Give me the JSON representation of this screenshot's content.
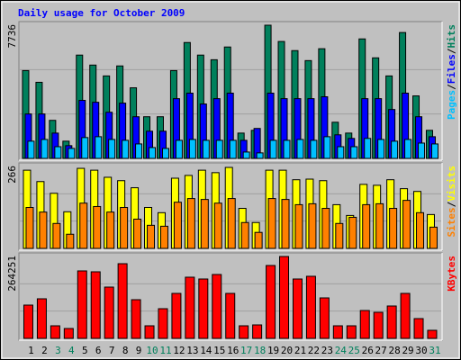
{
  "chart_data": [
    {
      "type": "bar",
      "title": "Daily usage for October 2009",
      "ylim": [
        0,
        7736
      ],
      "legend_separator": "/",
      "series": [
        {
          "name": "Hits",
          "color": "#00805c",
          "values": [
            5100,
            4420,
            2210,
            1000,
            6000,
            5420,
            4790,
            5370,
            4100,
            2420,
            2420,
            5100,
            6730,
            6000,
            5730,
            6470,
            1470,
            1630,
            7736,
            6790,
            6260,
            5680,
            6370,
            2100,
            1470,
            6940,
            5840,
            4790,
            7310,
            3630,
            1630
          ]
        },
        {
          "name": "Files",
          "color": "#0000ff",
          "values": [
            2580,
            2580,
            1470,
            740,
            3370,
            3260,
            2680,
            3210,
            2420,
            1580,
            1580,
            3470,
            3790,
            3160,
            3470,
            3790,
            1050,
            1740,
            3790,
            3470,
            3470,
            3470,
            3580,
            1370,
            1160,
            3470,
            3470,
            2840,
            3790,
            2420,
            1260
          ]
        },
        {
          "name": "Pages",
          "color": "#00c0ff",
          "values": [
            1000,
            1100,
            680,
            580,
            1210,
            1260,
            1100,
            1050,
            840,
            630,
            580,
            1050,
            1100,
            1050,
            1050,
            1050,
            370,
            320,
            1050,
            1050,
            1100,
            1050,
            1260,
            680,
            680,
            1160,
            1100,
            1000,
            1100,
            890,
            840
          ]
        }
      ]
    },
    {
      "type": "bar",
      "ylim": [
        0,
        266
      ],
      "legend_separator": "/",
      "series": [
        {
          "name": "Visits",
          "color": "#ffff00",
          "values": [
            254,
            217,
            179,
            119,
            260,
            254,
            231,
            220,
            197,
            133,
            116,
            228,
            237,
            254,
            246,
            263,
            130,
            84,
            254,
            254,
            223,
            225,
            220,
            142,
            107,
            208,
            205,
            223,
            194,
            185,
            110
          ]
        },
        {
          "name": "Sites",
          "color": "#ff8000",
          "values": [
            133,
            118,
            81,
            46,
            147,
            136,
            118,
            133,
            95,
            75,
            72,
            150,
            162,
            159,
            147,
            162,
            84,
            52,
            162,
            159,
            142,
            145,
            130,
            81,
            101,
            142,
            145,
            130,
            156,
            116,
            69
          ]
        }
      ]
    },
    {
      "type": "bar",
      "ylim": [
        0,
        264251
      ],
      "categories": [
        "1",
        "2",
        "3",
        "4",
        "5",
        "6",
        "7",
        "8",
        "9",
        "10",
        "11",
        "12",
        "13",
        "14",
        "15",
        "16",
        "17",
        "18",
        "19",
        "20",
        "21",
        "22",
        "23",
        "24",
        "25",
        "26",
        "27",
        "28",
        "29",
        "30",
        "31"
      ],
      "category_label_colors": [
        "#000000",
        "#000000",
        "#00805c",
        "#00805c",
        "#000000",
        "#000000",
        "#000000",
        "#000000",
        "#000000",
        "#00805c",
        "#00805c",
        "#000000",
        "#000000",
        "#000000",
        "#000000",
        "#000000",
        "#00805c",
        "#00805c",
        "#000000",
        "#000000",
        "#000000",
        "#000000",
        "#000000",
        "#00805c",
        "#00805c",
        "#000000",
        "#000000",
        "#000000",
        "#000000",
        "#000000",
        "#00805c"
      ],
      "series": [
        {
          "name": "KBytes",
          "color": "#ff0000",
          "values": [
            107450,
            127780,
            40660,
            31940,
            217800,
            214900,
            165530,
            241030,
            124870,
            40660,
            95830,
            145200,
            197470,
            191660,
            206180,
            145200,
            40660,
            43560,
            235220,
            264251,
            191660,
            200380,
            130680,
            40660,
            40660,
            90020,
            84220,
            104540,
            145200,
            63890,
            26140
          ]
        }
      ]
    }
  ]
}
